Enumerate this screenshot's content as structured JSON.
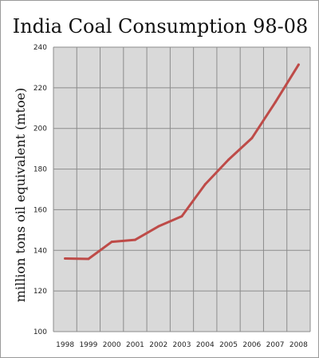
{
  "chart_data": {
    "type": "line",
    "title": "India Coal Consumption 98-08",
    "xlabel": "",
    "ylabel": "million tons oil equivalent (mtoe)",
    "x": [
      "1998",
      "1999",
      "2000",
      "2001",
      "2002",
      "2003",
      "2004",
      "2005",
      "2006",
      "2007",
      "2008"
    ],
    "series": [
      {
        "values": [
          136.0,
          135.8,
          144.2,
          145.2,
          151.8,
          156.8,
          172.5,
          184.6,
          195.2,
          212.8,
          231.4
        ],
        "color": "#be4b48"
      }
    ],
    "ylim": [
      100,
      240
    ],
    "yticks": [
      100,
      120,
      140,
      160,
      180,
      200,
      220,
      240
    ],
    "grid": true,
    "plot_background": "#d9d9d9",
    "grid_color": "#8c8c8c"
  }
}
